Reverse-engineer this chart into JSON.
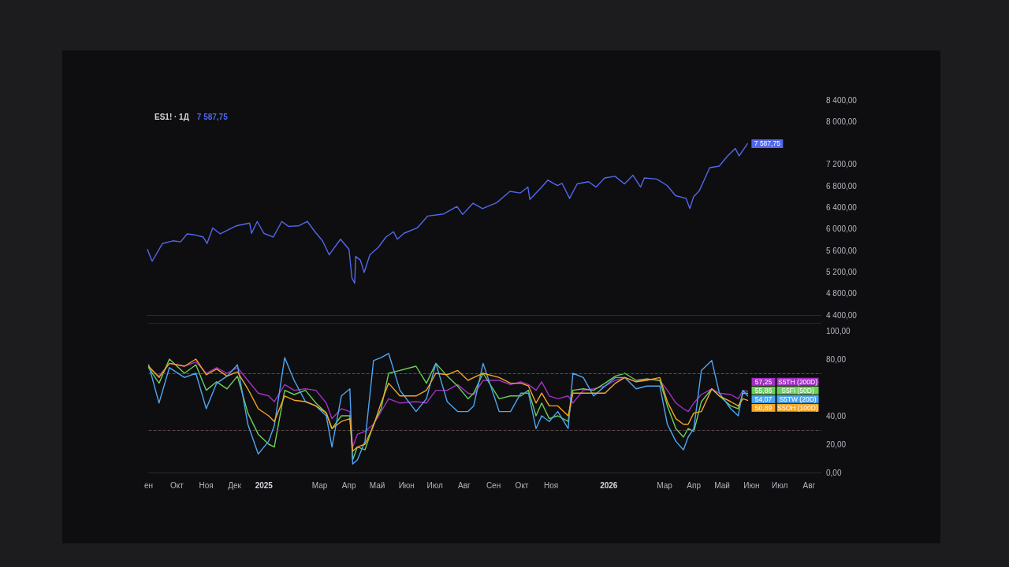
{
  "chart_data": [
    {
      "type": "line",
      "title": "ES1! · 1Д",
      "marker": "none",
      "tick_labels": "y",
      "xlim": [
        "2024-09-01",
        "2026-08-14"
      ],
      "ylim": [
        4400,
        8400
      ],
      "yticks": [
        {
          "value": 4400,
          "label": "4 400,00"
        },
        {
          "value": 4800,
          "label": "4 800,00"
        },
        {
          "value": 5200,
          "label": "5 200,00"
        },
        {
          "value": 5600,
          "label": "5 600,00"
        },
        {
          "value": 6000,
          "label": "6 000,00"
        },
        {
          "value": 6400,
          "label": "6 400,00"
        },
        {
          "value": 6800,
          "label": "6 800,00"
        },
        {
          "value": 7200,
          "label": "7 200,00"
        },
        {
          "value": 8000,
          "label": "8 000,00"
        },
        {
          "value": 8400,
          "label": "8 400,00"
        }
      ],
      "x": [
        "2024-09-01",
        "2024-09-06",
        "2024-09-17",
        "2024-09-28",
        "2024-10-06",
        "2024-10-13",
        "2024-10-21",
        "2024-10-30",
        "2024-11-03",
        "2024-11-09",
        "2024-11-17",
        "2024-12-04",
        "2024-12-18",
        "2024-12-20",
        "2024-12-26",
        "2025-01-02",
        "2025-01-12",
        "2025-01-21",
        "2025-01-28",
        "2025-02-08",
        "2025-02-17",
        "2025-02-25",
        "2025-03-05",
        "2025-03-12",
        "2025-03-24",
        "2025-04-02",
        "2025-04-05",
        "2025-04-08",
        "2025-04-09",
        "2025-04-14",
        "2025-04-18",
        "2025-04-24",
        "2025-05-03",
        "2025-05-11",
        "2025-05-19",
        "2025-05-23",
        "2025-05-30",
        "2025-06-13",
        "2025-06-24",
        "2025-07-11",
        "2025-07-25",
        "2025-07-31",
        "2025-08-11",
        "2025-08-21",
        "2025-09-05",
        "2025-09-19",
        "2025-09-30",
        "2025-10-08",
        "2025-10-10",
        "2025-10-22",
        "2025-10-29",
        "2025-11-08",
        "2025-11-13",
        "2025-11-21",
        "2025-11-29",
        "2025-12-11",
        "2025-12-19",
        "2025-12-28",
        "2026-01-08",
        "2026-01-18",
        "2026-01-27",
        "2026-02-04",
        "2026-02-08",
        "2026-02-21",
        "2026-03-04",
        "2026-03-13",
        "2026-03-24",
        "2026-03-28",
        "2026-04-01",
        "2026-04-07",
        "2026-04-18",
        "2026-04-28",
        "2026-05-07",
        "2026-05-15",
        "2026-05-19",
        "2026-05-28"
      ],
      "series": [
        {
          "color": "#5367ec",
          "values": [
            5620,
            5400,
            5730,
            5780,
            5760,
            5910,
            5890,
            5850,
            5730,
            6020,
            5910,
            6060,
            6110,
            5920,
            6140,
            5920,
            5850,
            6140,
            6050,
            6060,
            6140,
            5950,
            5780,
            5520,
            5810,
            5620,
            5090,
            4990,
            5490,
            5420,
            5190,
            5520,
            5660,
            5850,
            5950,
            5810,
            5920,
            6020,
            6240,
            6280,
            6420,
            6270,
            6480,
            6380,
            6490,
            6700,
            6670,
            6780,
            6550,
            6770,
            6910,
            6810,
            6850,
            6570,
            6840,
            6880,
            6780,
            6950,
            6980,
            6840,
            7000,
            6780,
            6950,
            6930,
            6810,
            6620,
            6570,
            6380,
            6600,
            6710,
            7140,
            7170,
            7360,
            7500,
            7360,
            7587.75
          ],
          "value_labels": [
            null,
            null,
            null,
            null,
            null,
            null,
            null,
            null,
            null,
            null,
            null,
            null,
            null,
            null,
            null,
            null,
            null,
            null,
            null,
            null,
            null,
            null,
            null,
            null,
            null,
            null,
            null,
            null,
            null,
            null,
            null,
            null,
            null,
            null,
            null,
            null,
            null,
            null,
            null,
            null,
            null,
            null,
            null,
            null,
            null,
            null,
            null,
            null,
            null,
            null,
            null,
            null,
            null,
            null,
            null,
            null,
            null,
            null,
            null,
            null,
            null,
            null,
            null,
            null,
            null,
            null,
            null,
            null,
            null,
            null,
            null,
            null,
            null,
            null,
            null,
            "7 587,75"
          ]
        }
      ]
    },
    {
      "type": "line",
      "marker": "none",
      "legend": "right",
      "xlim": [
        "2024-09-01",
        "2026-08-14"
      ],
      "ylim": [
        0,
        100
      ],
      "yticks": [
        {
          "value": 0,
          "label": "0,00"
        },
        {
          "value": 20,
          "label": "20,00"
        },
        {
          "value": 40,
          "label": "40,00"
        },
        {
          "value": 80,
          "label": "80,00"
        },
        {
          "value": 100,
          "label": "100,00"
        }
      ],
      "xticks": [
        {
          "value": "2024-09-01",
          "label": "ен"
        },
        {
          "value": "2024-10-01",
          "label": "Окт"
        },
        {
          "value": "2024-11-01",
          "label": "Ноя"
        },
        {
          "value": "2024-12-01",
          "label": "Дек"
        },
        {
          "value": "2025-01-01",
          "label": "2025"
        },
        {
          "value": "2025-03-01",
          "label": "Мар"
        },
        {
          "value": "2025-04-01",
          "label": "Апр"
        },
        {
          "value": "2025-05-01",
          "label": "Май"
        },
        {
          "value": "2025-06-01",
          "label": "Июн"
        },
        {
          "value": "2025-07-01",
          "label": "Июл"
        },
        {
          "value": "2025-08-01",
          "label": "Авг"
        },
        {
          "value": "2025-09-01",
          "label": "Сен"
        },
        {
          "value": "2025-10-01",
          "label": "Окт"
        },
        {
          "value": "2025-11-01",
          "label": "Ноя"
        },
        {
          "value": "2026-01-01",
          "label": "2026"
        },
        {
          "value": "2026-03-01",
          "label": "Мар"
        },
        {
          "value": "2026-04-01",
          "label": "Апр"
        },
        {
          "value": "2026-05-01",
          "label": "Май"
        },
        {
          "value": "2026-06-01",
          "label": "Июн"
        },
        {
          "value": "2026-07-01",
          "label": "Июл"
        },
        {
          "value": "2026-08-01",
          "label": "Авг"
        }
      ],
      "ref_lines": [
        {
          "axis": "y",
          "value": 70,
          "color": "#6b4545",
          "line_style": "dashed"
        },
        {
          "axis": "y",
          "value": 30,
          "color": "#5a4a4a",
          "line_style": "dashed"
        }
      ],
      "x": [
        "2024-09-01",
        "2024-09-12",
        "2024-09-23",
        "2024-10-09",
        "2024-10-21",
        "2024-11-01",
        "2024-11-12",
        "2024-11-23",
        "2024-12-04",
        "2024-12-15",
        "2024-12-26",
        "2025-01-06",
        "2025-01-12",
        "2025-01-23",
        "2025-02-02",
        "2025-02-14",
        "2025-02-25",
        "2025-03-08",
        "2025-03-14",
        "2025-03-24",
        "2025-04-02",
        "2025-04-05",
        "2025-04-10",
        "2025-04-18",
        "2025-04-27",
        "2025-05-05",
        "2025-05-13",
        "2025-05-25",
        "2025-06-11",
        "2025-06-22",
        "2025-07-02",
        "2025-07-14",
        "2025-07-25",
        "2025-08-05",
        "2025-08-11",
        "2025-08-21",
        "2025-09-07",
        "2025-09-19",
        "2025-09-30",
        "2025-10-08",
        "2025-10-16",
        "2025-10-22",
        "2025-10-30",
        "2025-11-08",
        "2025-11-19",
        "2025-11-24",
        "2025-12-05",
        "2025-12-16",
        "2025-12-28",
        "2026-01-08",
        "2026-01-18",
        "2026-01-30",
        "2026-02-10",
        "2026-02-24",
        "2026-03-04",
        "2026-03-13",
        "2026-03-21",
        "2026-03-26",
        "2026-04-01",
        "2026-04-09",
        "2026-04-20",
        "2026-04-28",
        "2026-05-10",
        "2026-05-18",
        "2026-05-23",
        "2026-05-28"
      ],
      "series": [
        {
          "name": "S5TH (200D)",
          "color": "#a431c4",
          "values": [
            74,
            68,
            77,
            75,
            78,
            70,
            74,
            70,
            74,
            65,
            56,
            54,
            50,
            62,
            58,
            59,
            58,
            49,
            38,
            45,
            43,
            18,
            27,
            29,
            34,
            43,
            52,
            49,
            50,
            49,
            58,
            58,
            62,
            56,
            55,
            65,
            65,
            62,
            64,
            62,
            58,
            64,
            54,
            52,
            54,
            49,
            58,
            59,
            61,
            65,
            67,
            64,
            66,
            65,
            58,
            49,
            45,
            43,
            49,
            55,
            59,
            56,
            55,
            52,
            58,
            57.25
          ],
          "value_labels": [
            null,
            null,
            null,
            null,
            null,
            null,
            null,
            null,
            null,
            null,
            null,
            null,
            null,
            null,
            null,
            null,
            null,
            null,
            null,
            null,
            null,
            null,
            null,
            null,
            null,
            null,
            null,
            null,
            null,
            null,
            null,
            null,
            null,
            null,
            null,
            null,
            null,
            null,
            null,
            null,
            null,
            null,
            null,
            null,
            null,
            null,
            null,
            null,
            null,
            null,
            null,
            null,
            null,
            null,
            null,
            null,
            null,
            null,
            null,
            null,
            null,
            null,
            null,
            null,
            null,
            "57,25"
          ]
        },
        {
          "name": "S5FI (50D)",
          "color": "#6ccf5a",
          "values": [
            74,
            63,
            80,
            70,
            76,
            58,
            64,
            59,
            68,
            42,
            27,
            20,
            18,
            58,
            55,
            58,
            49,
            42,
            31,
            40,
            40,
            9,
            18,
            16,
            34,
            45,
            70,
            72,
            75,
            63,
            77,
            68,
            61,
            52,
            56,
            70,
            52,
            54,
            54,
            58,
            40,
            49,
            38,
            40,
            36,
            58,
            59,
            58,
            63,
            68,
            70,
            65,
            66,
            65,
            47,
            31,
            25,
            31,
            29,
            50,
            59,
            54,
            47,
            45,
            56,
            55.86
          ],
          "value_labels": [
            null,
            null,
            null,
            null,
            null,
            null,
            null,
            null,
            null,
            null,
            null,
            null,
            null,
            null,
            null,
            null,
            null,
            null,
            null,
            null,
            null,
            null,
            null,
            null,
            null,
            null,
            null,
            null,
            null,
            null,
            null,
            null,
            null,
            null,
            null,
            null,
            null,
            null,
            null,
            null,
            null,
            null,
            null,
            null,
            null,
            null,
            null,
            null,
            null,
            null,
            null,
            null,
            null,
            null,
            null,
            null,
            null,
            null,
            null,
            null,
            null,
            null,
            null,
            null,
            null,
            "55,86"
          ]
        },
        {
          "name": "S5TW (20D)",
          "color": "#4ea6f2",
          "values": [
            76,
            49,
            74,
            67,
            70,
            45,
            63,
            68,
            76,
            34,
            13,
            22,
            33,
            81,
            65,
            50,
            47,
            40,
            18,
            54,
            59,
            6,
            9,
            22,
            79,
            81,
            84,
            58,
            43,
            52,
            77,
            50,
            43,
            43,
            47,
            77,
            43,
            43,
            56,
            56,
            31,
            40,
            36,
            43,
            31,
            70,
            67,
            54,
            61,
            67,
            67,
            59,
            61,
            61,
            34,
            22,
            16,
            25,
            31,
            72,
            79,
            56,
            45,
            40,
            58,
            54.07
          ],
          "value_labels": [
            null,
            null,
            null,
            null,
            null,
            null,
            null,
            null,
            null,
            null,
            null,
            null,
            null,
            null,
            null,
            null,
            null,
            null,
            null,
            null,
            null,
            null,
            null,
            null,
            null,
            null,
            null,
            null,
            null,
            null,
            null,
            null,
            null,
            null,
            null,
            null,
            null,
            null,
            null,
            null,
            null,
            null,
            null,
            null,
            null,
            null,
            null,
            null,
            null,
            null,
            null,
            null,
            null,
            null,
            null,
            null,
            null,
            null,
            null,
            null,
            null,
            null,
            null,
            null,
            null,
            "54,07"
          ]
        },
        {
          "name": "S5OH (100D)",
          "color": "#f5a524",
          "values": [
            75,
            67,
            77,
            75,
            80,
            69,
            73,
            68,
            71,
            59,
            45,
            40,
            36,
            54,
            51,
            50,
            47,
            42,
            31,
            36,
            38,
            15,
            18,
            20,
            33,
            49,
            63,
            54,
            54,
            58,
            70,
            69,
            72,
            65,
            67,
            70,
            67,
            63,
            63,
            61,
            49,
            56,
            47,
            47,
            40,
            56,
            56,
            56,
            56,
            63,
            67,
            64,
            65,
            67,
            50,
            38,
            34,
            34,
            42,
            43,
            59,
            54,
            50,
            47,
            52,
            50.89
          ],
          "value_labels": [
            null,
            null,
            null,
            null,
            null,
            null,
            null,
            null,
            null,
            null,
            null,
            null,
            null,
            null,
            null,
            null,
            null,
            null,
            null,
            null,
            null,
            null,
            null,
            null,
            null,
            null,
            null,
            null,
            null,
            null,
            null,
            null,
            null,
            null,
            null,
            null,
            null,
            null,
            null,
            null,
            null,
            null,
            null,
            null,
            null,
            null,
            null,
            null,
            null,
            null,
            null,
            null,
            null,
            null,
            null,
            null,
            null,
            null,
            null,
            null,
            null,
            null,
            null,
            null,
            null,
            "50,89"
          ]
        }
      ]
    }
  ]
}
